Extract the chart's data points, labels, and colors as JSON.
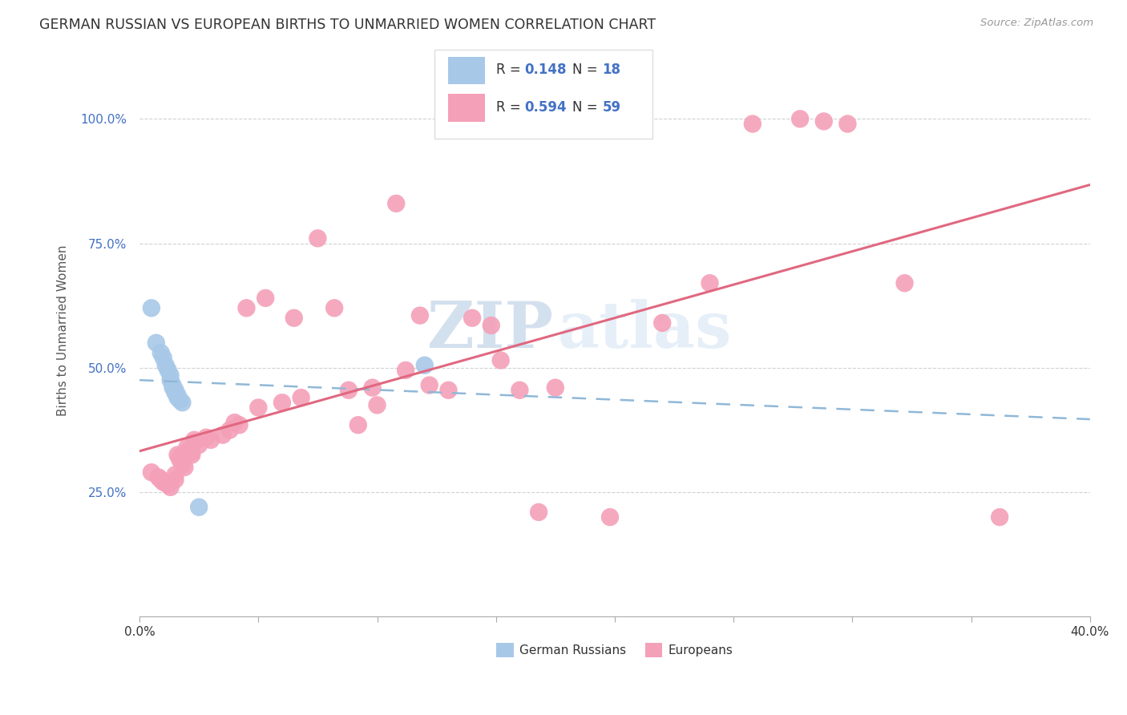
{
  "title": "GERMAN RUSSIAN VS EUROPEAN BIRTHS TO UNMARRIED WOMEN CORRELATION CHART",
  "source": "Source: ZipAtlas.com",
  "ylabel": "Births to Unmarried Women",
  "xlim": [
    0.0,
    0.4
  ],
  "ylim": [
    0.0,
    1.15
  ],
  "yticks": [
    0.25,
    0.5,
    0.75,
    1.0
  ],
  "ytick_labels": [
    "25.0%",
    "50.0%",
    "75.0%",
    "100.0%"
  ],
  "xticks": [
    0.0,
    0.05,
    0.1,
    0.15,
    0.2,
    0.25,
    0.3,
    0.35,
    0.4
  ],
  "xtick_labels": [
    "0.0%",
    "",
    "",
    "",
    "",
    "",
    "",
    "",
    "40.0%"
  ],
  "watermark_zip": "ZIP",
  "watermark_atlas": "atlas",
  "background_color": "#ffffff",
  "grid_color": "#cccccc",
  "blue_color": "#a8c8e8",
  "pink_color": "#f4a0b8",
  "blue_line_color": "#90b8d8",
  "pink_line_color": "#e06880",
  "title_color": "#333333",
  "source_color": "#999999",
  "ytick_color": "#4472c4",
  "blue_scatter": [
    [
      0.005,
      0.62
    ],
    [
      0.007,
      0.55
    ],
    [
      0.009,
      0.53
    ],
    [
      0.01,
      0.52
    ],
    [
      0.011,
      0.505
    ],
    [
      0.012,
      0.495
    ],
    [
      0.013,
      0.485
    ],
    [
      0.013,
      0.475
    ],
    [
      0.014,
      0.465
    ],
    [
      0.014,
      0.46
    ],
    [
      0.015,
      0.455
    ],
    [
      0.015,
      0.45
    ],
    [
      0.016,
      0.445
    ],
    [
      0.016,
      0.44
    ],
    [
      0.017,
      0.435
    ],
    [
      0.018,
      0.43
    ],
    [
      0.025,
      0.22
    ],
    [
      0.12,
      0.505
    ]
  ],
  "pink_scatter": [
    [
      0.005,
      0.29
    ],
    [
      0.008,
      0.28
    ],
    [
      0.009,
      0.275
    ],
    [
      0.01,
      0.27
    ],
    [
      0.012,
      0.265
    ],
    [
      0.013,
      0.26
    ],
    [
      0.015,
      0.285
    ],
    [
      0.015,
      0.275
    ],
    [
      0.016,
      0.325
    ],
    [
      0.017,
      0.32
    ],
    [
      0.017,
      0.315
    ],
    [
      0.018,
      0.31
    ],
    [
      0.018,
      0.305
    ],
    [
      0.019,
      0.3
    ],
    [
      0.02,
      0.34
    ],
    [
      0.02,
      0.33
    ],
    [
      0.021,
      0.335
    ],
    [
      0.022,
      0.33
    ],
    [
      0.022,
      0.325
    ],
    [
      0.023,
      0.355
    ],
    [
      0.023,
      0.35
    ],
    [
      0.025,
      0.345
    ],
    [
      0.028,
      0.36
    ],
    [
      0.03,
      0.355
    ],
    [
      0.035,
      0.365
    ],
    [
      0.038,
      0.375
    ],
    [
      0.04,
      0.39
    ],
    [
      0.042,
      0.385
    ],
    [
      0.045,
      0.62
    ],
    [
      0.05,
      0.42
    ],
    [
      0.053,
      0.64
    ],
    [
      0.06,
      0.43
    ],
    [
      0.065,
      0.6
    ],
    [
      0.068,
      0.44
    ],
    [
      0.075,
      0.76
    ],
    [
      0.082,
      0.62
    ],
    [
      0.088,
      0.455
    ],
    [
      0.092,
      0.385
    ],
    [
      0.098,
      0.46
    ],
    [
      0.1,
      0.425
    ],
    [
      0.108,
      0.83
    ],
    [
      0.112,
      0.495
    ],
    [
      0.118,
      0.605
    ],
    [
      0.122,
      0.465
    ],
    [
      0.13,
      0.455
    ],
    [
      0.14,
      0.6
    ],
    [
      0.148,
      0.585
    ],
    [
      0.152,
      0.515
    ],
    [
      0.16,
      0.455
    ],
    [
      0.168,
      0.21
    ],
    [
      0.175,
      0.46
    ],
    [
      0.198,
      0.2
    ],
    [
      0.22,
      0.59
    ],
    [
      0.24,
      0.67
    ],
    [
      0.258,
      0.99
    ],
    [
      0.278,
      1.0
    ],
    [
      0.288,
      0.995
    ],
    [
      0.298,
      0.99
    ],
    [
      0.322,
      0.67
    ],
    [
      0.362,
      0.2
    ]
  ]
}
